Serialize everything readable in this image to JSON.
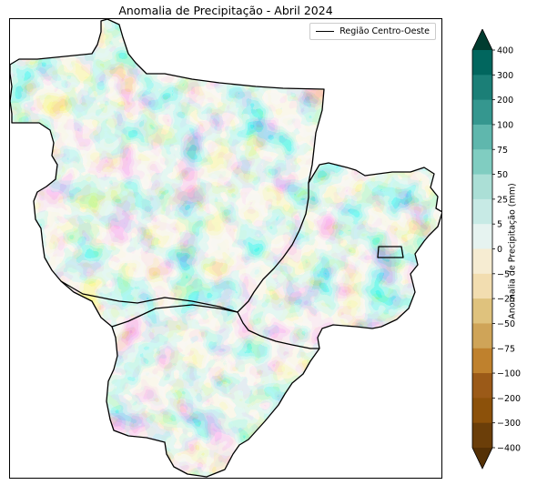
{
  "title": "Anomalia de Precipitação - Abril 2024",
  "legend": {
    "label": "Região Centro-Oeste",
    "line_color": "#000000"
  },
  "colorbar": {
    "label": "Anomalia de Precipitação (mm)",
    "ticks": [
      "400",
      "300",
      "200",
      "100",
      "75",
      "50",
      "25",
      "5",
      "0",
      "−5",
      "−25",
      "−50",
      "−75",
      "−100",
      "−200",
      "−300",
      "−400"
    ],
    "colors_top_to_bottom": [
      "#003c30",
      "#01665e",
      "#1b7f77",
      "#35978f",
      "#5fb7ad",
      "#80cdc1",
      "#abdfd6",
      "#c7eae5",
      "#e6f3f0",
      "#f6ecd2",
      "#f2ddb0",
      "#dfc27d",
      "#cfa458",
      "#bf812d",
      "#9b5a18",
      "#8c510a",
      "#6b3e09",
      "#543005"
    ]
  },
  "map": {
    "region": "Região Centro-Oeste",
    "states": [
      "MT",
      "GO",
      "DF",
      "MS"
    ],
    "colors": {
      "wet": "#35978f",
      "dry": "#cfa458",
      "neutral": "#f2ddb0",
      "outline": "#000000"
    }
  }
}
